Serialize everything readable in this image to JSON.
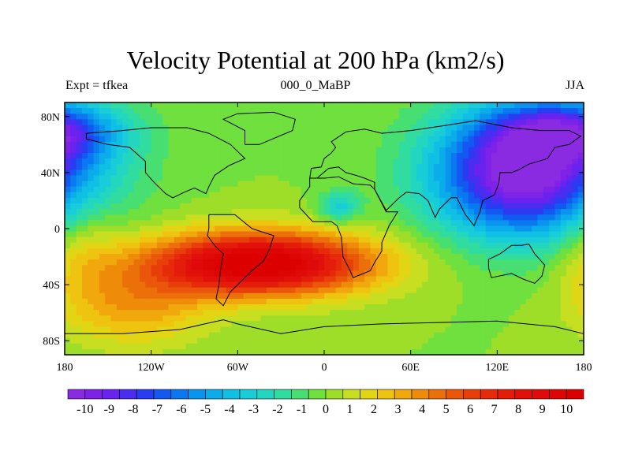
{
  "title": "Velocity Potential at 200 hPa (km2/s)",
  "subtitle_left": "Expt = tfkea",
  "subtitle_center": "000_0_MaBP",
  "subtitle_right": "JJA",
  "lon_ticks": [
    "180",
    "120W",
    "60W",
    "0",
    "60E",
    "120E",
    "180"
  ],
  "lat_ticks": [
    "80N",
    "40N",
    "0",
    "40S",
    "80S"
  ],
  "colorbar": {
    "labels": [
      "-10",
      "-9",
      "-8",
      "-7",
      "-6",
      "-5",
      "-4",
      "-3",
      "-2",
      "-1",
      "0",
      "1",
      "2",
      "3",
      "4",
      "5",
      "6",
      "7",
      "8",
      "9",
      "10"
    ],
    "colors": [
      "#8a2be2",
      "#7f22e8",
      "#6a22ef",
      "#4a2df0",
      "#2a3cf2",
      "#1458f2",
      "#0a78f0",
      "#0a94ee",
      "#0aacea",
      "#10bfe4",
      "#18cdd8",
      "#22d6c0",
      "#30dca0",
      "#48df72",
      "#6fe03e",
      "#9ede28",
      "#c8de20",
      "#e2d614",
      "#eec410",
      "#f0a80c",
      "#ee8c0a",
      "#ec700a",
      "#ea560a",
      "#e83e0a",
      "#e62a0a",
      "#e41c0a",
      "#e2100a",
      "#e00a0a",
      "#de0505",
      "#dc0000"
    ]
  },
  "colors": {
    "frame": "#000000",
    "coast": "#000000"
  },
  "field_features": [
    {
      "kind": "low",
      "lon": 140,
      "lat": 40,
      "amp": -10.5,
      "sx": 45,
      "sy": 32
    },
    {
      "kind": "low",
      "lon": 170,
      "lat": 70,
      "amp": -5,
      "sx": 35,
      "sy": 15
    },
    {
      "kind": "low",
      "lon": 10,
      "lat": 15,
      "amp": -3,
      "sx": 10,
      "sy": 8
    },
    {
      "kind": "high",
      "lon": -45,
      "lat": -25,
      "amp": 10.6,
      "sx": 55,
      "sy": 16
    },
    {
      "kind": "high",
      "lon": -130,
      "lat": -55,
      "amp": 3,
      "sx": 35,
      "sy": 20
    },
    {
      "kind": "high",
      "lon": -170,
      "lat": -10,
      "amp": 2,
      "sx": 20,
      "sy": 30
    }
  ]
}
